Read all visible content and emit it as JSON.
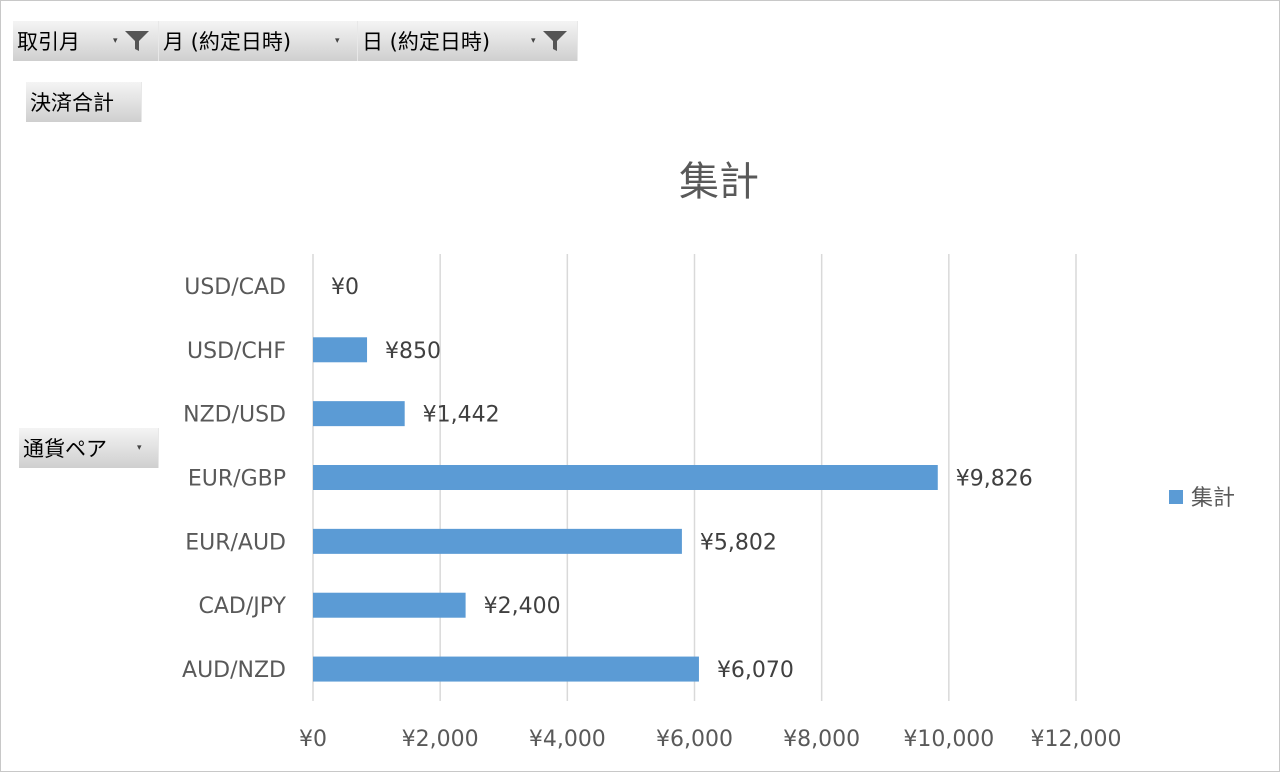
{
  "filters": {
    "trade_month": "取引月",
    "month_contract": "月 (約定日時)",
    "day_contract": "日 (約定日時)"
  },
  "values_field": "決済合計",
  "row_field": "通貨ペア",
  "colors": {
    "bar": "#5b9bd5",
    "grid": "#d9d9d9",
    "button": "#d9d9d9"
  },
  "chart_data": {
    "type": "bar",
    "orientation": "horizontal",
    "title": "集計",
    "categories": [
      "USD/CAD",
      "USD/CHF",
      "NZD/USD",
      "EUR/GBP",
      "EUR/AUD",
      "CAD/JPY",
      "AUD/NZD"
    ],
    "series": [
      {
        "name": "集計",
        "values": [
          0,
          850,
          1442,
          9826,
          5802,
          2400,
          6070
        ]
      }
    ],
    "data_labels": [
      "¥0",
      "¥850",
      "¥1,442",
      "¥9,826",
      "¥5,802",
      "¥2,400",
      "¥6,070"
    ],
    "xlim": [
      0,
      12000
    ],
    "x_ticks": [
      "¥0",
      "¥2,000",
      "¥4,000",
      "¥6,000",
      "¥8,000",
      "¥10,000",
      "¥12,000"
    ],
    "grid": true,
    "legend_position": "right"
  }
}
